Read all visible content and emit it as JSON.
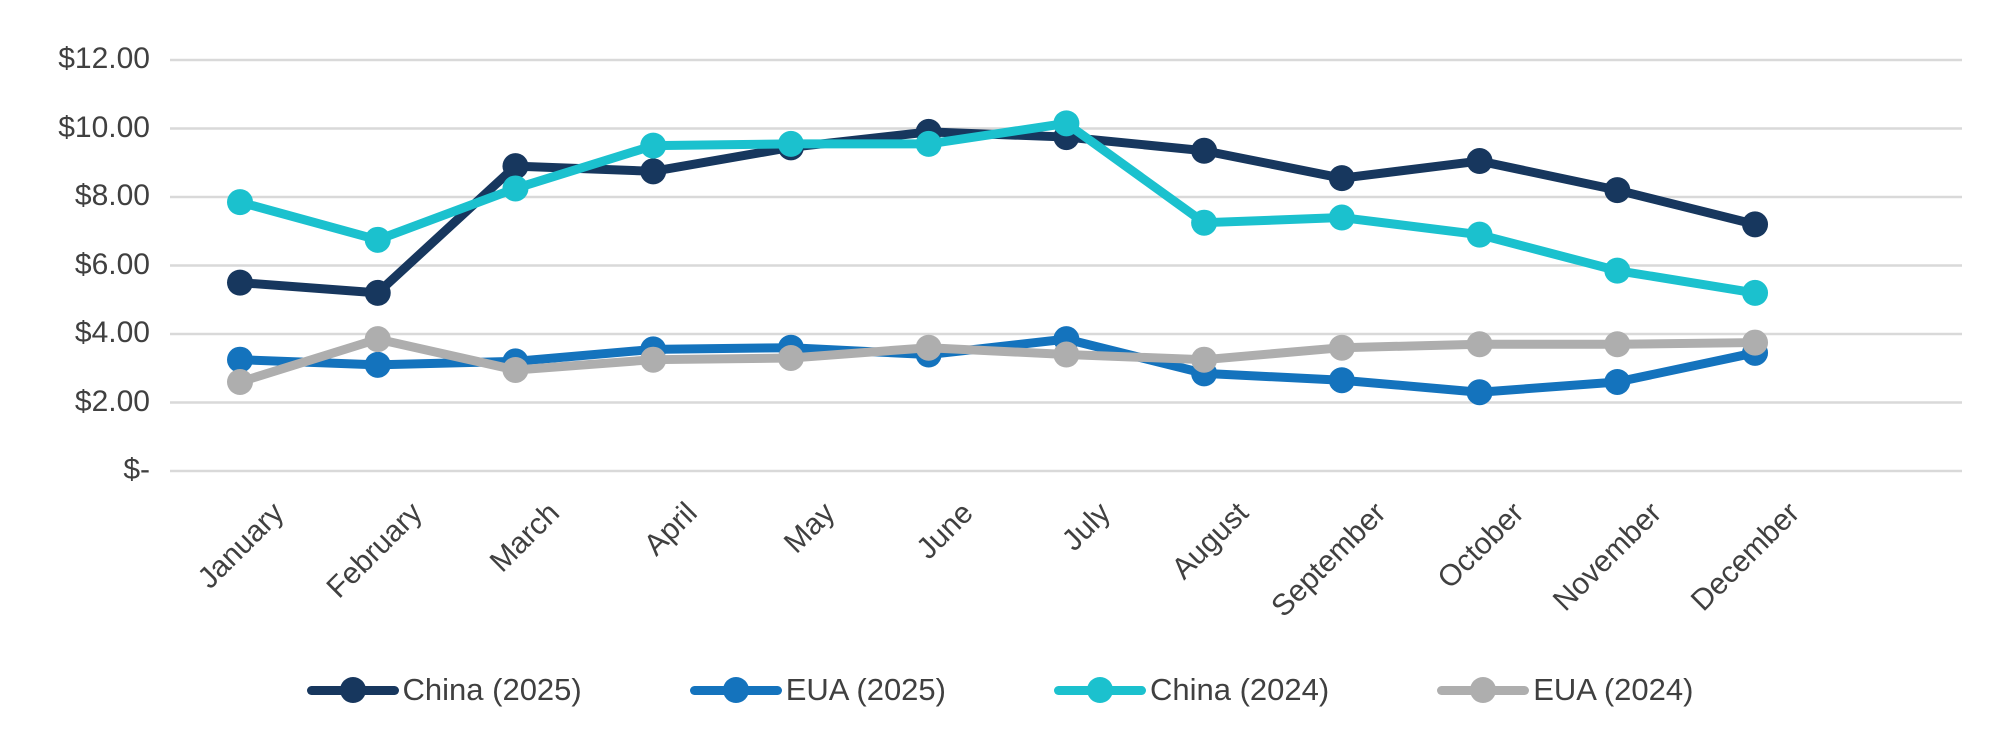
{
  "chart_data": {
    "type": "line",
    "categories": [
      "January",
      "February",
      "March",
      "April",
      "May",
      "June",
      "July",
      "August",
      "September",
      "October",
      "November",
      "December"
    ],
    "series": [
      {
        "name": "China (2025)",
        "color": "#17375E",
        "values": [
          5.5,
          5.2,
          8.9,
          8.75,
          9.45,
          9.9,
          9.75,
          9.35,
          8.55,
          9.05,
          8.2,
          7.2
        ]
      },
      {
        "name": "EUA (2025)",
        "color": "#1473BD",
        "values": [
          3.25,
          3.1,
          3.2,
          3.55,
          3.6,
          3.4,
          3.85,
          2.85,
          2.65,
          2.3,
          2.6,
          3.45
        ]
      },
      {
        "name": "China (2024)",
        "color": "#1BC1CE",
        "values": [
          7.85,
          6.75,
          8.25,
          9.5,
          9.55,
          9.55,
          10.15,
          7.25,
          7.4,
          6.9,
          5.85,
          5.2
        ]
      },
      {
        "name": "EUA (2024)",
        "color": "#AEAEAE",
        "values": [
          2.6,
          3.85,
          2.95,
          3.25,
          3.3,
          3.6,
          3.4,
          3.25,
          3.6,
          3.7,
          3.7,
          3.75
        ]
      }
    ],
    "yaxis": {
      "ticks": [
        "$12.00",
        "$10.00",
        "$8.00",
        "$6.00",
        "$4.00",
        "$2.00",
        "$-"
      ],
      "tick_values": [
        12,
        10,
        8,
        6,
        4,
        2,
        0
      ],
      "min": 0,
      "max": 12,
      "grid": true
    },
    "xlabel": "",
    "ylabel": "",
    "legend_position": "bottom",
    "legend": [
      "China (2025)",
      "EUA (2025)",
      "China (2024)",
      "EUA (2024)"
    ]
  },
  "colors": {
    "background": "#FFFFFF",
    "gridline": "#D9D9D9",
    "axis_text": "#404040"
  }
}
